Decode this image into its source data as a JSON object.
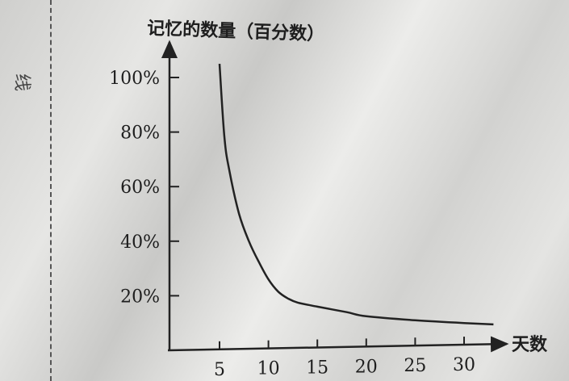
{
  "margin_mark": "线",
  "chart_data": {
    "type": "line",
    "title": "",
    "ylabel": "记忆的数量（百分数）",
    "xlabel": "天数",
    "x_ticks": [
      5,
      10,
      15,
      20,
      25,
      30
    ],
    "y_ticks": [
      "20%",
      "40%",
      "60%",
      "80%",
      "100%"
    ],
    "y_tick_values": [
      20,
      40,
      60,
      80,
      100
    ],
    "xlim": [
      0,
      33
    ],
    "ylim": [
      0,
      108
    ],
    "grid": false,
    "series": [
      {
        "x": [
          5,
          5.5,
          6,
          7,
          8,
          9,
          10,
          11,
          12,
          13,
          15,
          18,
          20,
          25,
          30,
          33
        ],
        "y": [
          105,
          78,
          66,
          50,
          40,
          32.5,
          26,
          21.5,
          19,
          17.5,
          16,
          14,
          12.5,
          11,
          10,
          9.5
        ]
      }
    ]
  }
}
